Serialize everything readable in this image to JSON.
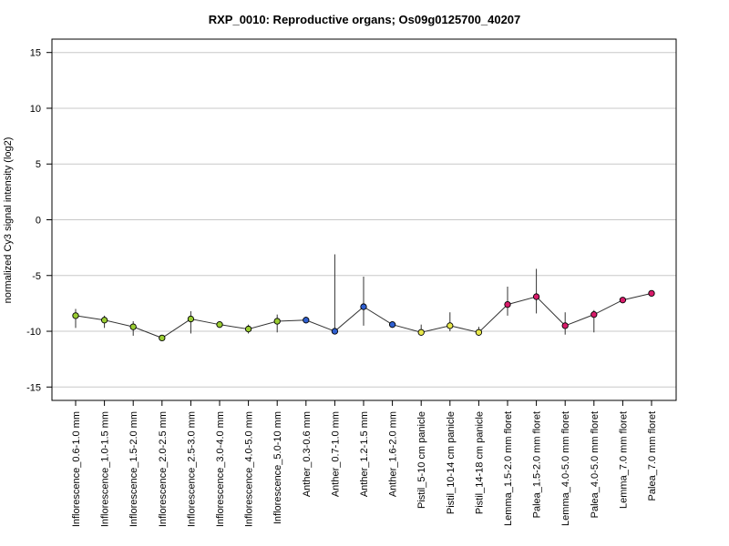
{
  "chart_data": {
    "type": "line",
    "title": "RXP_0010: Reproductive organs; Os09g0125700_40207",
    "ylabel": "normalized Cy3 signal intensity (log2)",
    "xlabel": "",
    "ylim": [
      -16.2,
      16.2
    ],
    "yticks": [
      -15,
      -10,
      -5,
      0,
      5,
      10,
      15
    ],
    "grid": true,
    "categories": [
      "Inflorescence_0.6-1.0 mm",
      "Inflorescence_1.0-1.5 mm",
      "Inflorescence_1.5-2.0 mm",
      "Inflorescence_2.0-2.5 mm",
      "Inflorescence_2.5-3.0 mm",
      "Inflorescence_3.0-4.0 mm",
      "Inflorescence_4.0-5.0 mm",
      "Inflorescence_5.0-10 mm",
      "Anther_0.3-0.6 mm",
      "Anther_0.7-1.0 mm",
      "Anther_1.2-1.5 mm",
      "Anther_1.6-2.0 mm",
      "Pistil_5-10 cm panicle",
      "Pistil_10-14 cm panicle",
      "Pistil_14-18 cm panicle",
      "Lemma_1.5-2.0 mm floret",
      "Palea_1.5-2.0 mm floret",
      "Lemma_4.0-5.0 mm floret",
      "Palea_4.0-5.0 mm floret",
      "Lemma_7.0 mm floret",
      "Palea_7.0 mm floret"
    ],
    "values": [
      -8.6,
      -9.0,
      -9.6,
      -10.6,
      -8.9,
      -9.4,
      -9.8,
      -9.1,
      -9.0,
      -10.0,
      -7.8,
      -9.4,
      -10.1,
      -9.5,
      -10.1,
      -7.6,
      -6.9,
      -9.5,
      -8.5,
      -7.2,
      -6.6
    ],
    "error_low": [
      -9.7,
      -9.7,
      -10.4,
      -10.8,
      -10.2,
      -9.6,
      -10.2,
      -10.1,
      -9.3,
      -10.2,
      -9.5,
      -9.6,
      -10.4,
      -10.0,
      -10.4,
      -8.6,
      -8.4,
      -10.3,
      -10.1,
      -7.4,
      -6.7
    ],
    "error_high": [
      -8.0,
      -8.6,
      -9.1,
      -10.4,
      -8.2,
      -9.2,
      -9.4,
      -8.5,
      -8.7,
      -3.1,
      -5.1,
      -9.2,
      -9.4,
      -8.3,
      -9.6,
      -6.0,
      -4.4,
      -8.3,
      -8.1,
      -7.0,
      -6.5
    ],
    "point_colors": [
      "#9ACD32",
      "#9ACD32",
      "#9ACD32",
      "#9ACD32",
      "#9ACD32",
      "#9ACD32",
      "#9ACD32",
      "#9ACD32",
      "#2F5FD0",
      "#2F5FD0",
      "#2F5FD0",
      "#2F5FD0",
      "#E8E84A",
      "#E8E84A",
      "#E8E84A",
      "#D81B6A",
      "#D81B6A",
      "#D81B6A",
      "#D81B6A",
      "#D81B6A",
      "#D81B6A"
    ]
  }
}
